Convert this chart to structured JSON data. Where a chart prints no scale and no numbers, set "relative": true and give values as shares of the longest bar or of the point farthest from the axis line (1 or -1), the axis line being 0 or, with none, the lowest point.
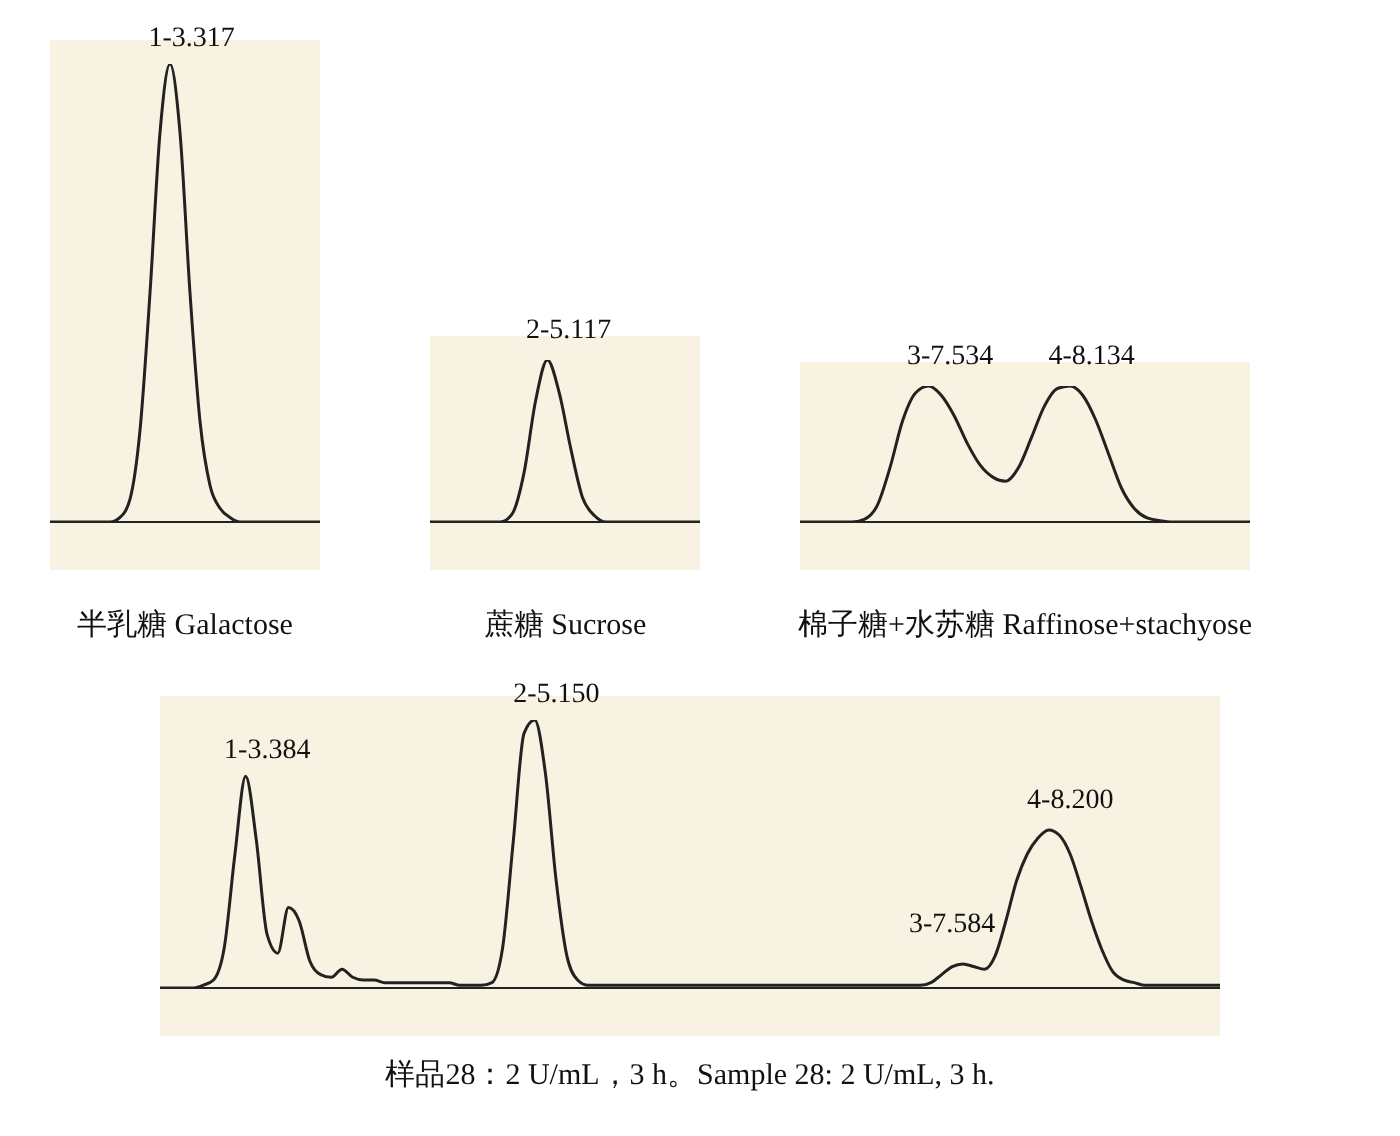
{
  "chart_data": [
    {
      "type": "line",
      "title": "半乳糖 Galactose",
      "relative": true,
      "categories": [
        null,
        null,
        null,
        null,
        null,
        null,
        null,
        null,
        null,
        null,
        null,
        null,
        null,
        null,
        null,
        null,
        null,
        null,
        null,
        null,
        null,
        null,
        null,
        null,
        null,
        null,
        null,
        null
      ],
      "values": [
        0,
        0,
        0,
        0,
        0,
        0,
        0,
        0.01,
        0.05,
        0.2,
        0.5,
        0.85,
        1,
        0.85,
        0.5,
        0.22,
        0.08,
        0.03,
        0.01,
        0,
        0,
        0,
        0,
        0,
        0,
        0,
        0,
        0
      ],
      "color": "#222222",
      "annotations": [
        "1-3.317"
      ]
    },
    {
      "type": "line",
      "title": "蔗糖 Sucrose",
      "relative": true,
      "categories": [
        null,
        null,
        null,
        null,
        null,
        null,
        null,
        null,
        null,
        null,
        null,
        null,
        null,
        null,
        null,
        null,
        null,
        null,
        null,
        null,
        null,
        null,
        null,
        null
      ],
      "values": [
        0,
        0,
        0,
        0,
        0,
        0,
        0,
        0.05,
        0.3,
        0.75,
        1,
        0.8,
        0.45,
        0.15,
        0.04,
        0,
        0,
        0,
        0,
        0,
        0,
        0,
        0,
        0
      ],
      "color": "#222222",
      "annotations": [
        "2-5.117"
      ]
    },
    {
      "type": "line",
      "title": "棉子糖+水苏糖 Raffinose+stachyose",
      "relative": true,
      "categories": [
        null,
        null,
        null,
        null,
        null,
        null,
        null,
        null,
        null,
        null,
        null,
        null,
        null,
        null,
        null,
        null,
        null,
        null,
        null,
        null,
        null,
        null,
        null,
        null,
        null,
        null,
        null,
        null,
        null,
        null,
        null,
        null,
        null,
        null,
        null,
        null
      ],
      "values": [
        0,
        0,
        0,
        0,
        0,
        0.02,
        0.12,
        0.4,
        0.75,
        0.95,
        1,
        0.93,
        0.78,
        0.58,
        0.42,
        0.33,
        0.3,
        0.4,
        0.62,
        0.85,
        0.98,
        1,
        0.93,
        0.75,
        0.5,
        0.25,
        0.1,
        0.03,
        0.01,
        0,
        0,
        0,
        0,
        0,
        0,
        0
      ],
      "color": "#222222",
      "annotations": [
        "3-7.534",
        "4-8.134"
      ]
    },
    {
      "type": "line",
      "title": "样品28：2 U/mL，3 h。Sample 28: 2 U/mL, 3 h.",
      "relative": true,
      "categories": [
        null,
        null,
        null,
        null,
        null,
        null,
        null,
        null,
        null,
        null,
        null,
        null,
        null,
        null,
        null,
        null,
        null,
        null,
        null,
        null,
        null,
        null,
        null,
        null,
        null,
        null,
        null,
        null,
        null,
        null,
        null,
        null,
        null,
        null,
        null,
        null,
        null,
        null,
        null,
        null,
        null,
        null,
        null,
        null,
        null,
        null,
        null,
        null,
        null,
        null,
        null,
        null,
        null,
        null,
        null,
        null,
        null,
        null,
        null,
        null,
        null,
        null,
        null,
        null,
        null,
        null,
        null,
        null,
        null,
        null,
        null,
        null,
        null,
        null,
        null,
        null,
        null,
        null,
        null,
        null,
        null,
        null,
        null,
        null,
        null,
        null,
        null,
        null,
        null,
        null,
        null,
        null,
        null,
        null,
        null,
        null,
        null,
        null,
        null,
        null
      ],
      "values": [
        0,
        0,
        0,
        0,
        0.01,
        0.03,
        0.15,
        0.5,
        0.79,
        0.55,
        0.2,
        0.13,
        0.3,
        0.25,
        0.1,
        0.05,
        0.04,
        0.07,
        0.04,
        0.03,
        0.03,
        0.02,
        0.02,
        0.02,
        0.02,
        0.02,
        0.02,
        0.02,
        0.01,
        0.01,
        0.01,
        0.02,
        0.15,
        0.55,
        0.95,
        1,
        0.8,
        0.4,
        0.12,
        0.03,
        0.01,
        0.01,
        0.01,
        0.01,
        0.01,
        0.01,
        0.01,
        0.01,
        0.01,
        0.01,
        0.01,
        0.01,
        0.01,
        0.01,
        0.01,
        0.01,
        0.01,
        0.01,
        0.01,
        0.01,
        0.01,
        0.01,
        0.01,
        0.01,
        0.01,
        0.01,
        0.01,
        0.01,
        0.01,
        0.01,
        0.01,
        0.01,
        0.02,
        0.05,
        0.08,
        0.09,
        0.08,
        0.07,
        0.12,
        0.25,
        0.4,
        0.5,
        0.56,
        0.59,
        0.57,
        0.5,
        0.38,
        0.25,
        0.14,
        0.06,
        0.03,
        0.02,
        0.01,
        0.01,
        0.01,
        0.01,
        0.01,
        0.01,
        0.01,
        0.01
      ],
      "color": "#222222",
      "annotations": [
        "1-3.384",
        "2-5.150",
        "3-7.584",
        "4-8.200"
      ]
    }
  ]
}
